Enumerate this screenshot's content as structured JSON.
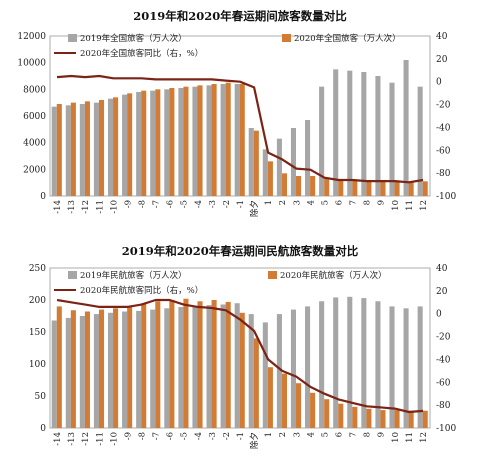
{
  "chart_data": [
    {
      "type": "bar",
      "title": "2019年和2020年春运期间旅客数量对比",
      "categories": [
        "-14",
        "-13",
        "-12",
        "-11",
        "-10",
        "-9",
        "-8",
        "-7",
        "-6",
        "-5",
        "-4",
        "-3",
        "-2",
        "-1",
        "除夕",
        "1",
        "2",
        "3",
        "4",
        "5",
        "6",
        "7",
        "8",
        "9",
        "10",
        "11",
        "12"
      ],
      "xtick_labels": [
        "-14",
        "-13",
        "-12",
        "-11",
        "-10",
        "-9",
        "-8",
        "-7",
        "-6",
        "-5",
        "-4",
        "-3",
        "-2",
        "-1",
        "除夕",
        "1",
        "2",
        "3",
        "4",
        "5",
        "6",
        "7",
        "8",
        "9",
        "10",
        "11",
        "12"
      ],
      "series": [
        {
          "name": "2019年全国旅客（万人次）",
          "axis": "left",
          "kind": "bar",
          "color": "#a6a6a6",
          "values": [
            6700,
            6800,
            6900,
            7000,
            7300,
            7600,
            7800,
            7900,
            8000,
            8100,
            8200,
            8300,
            8400,
            8400,
            5100,
            3500,
            4300,
            5100,
            5700,
            8200,
            9500,
            9400,
            9300,
            9000,
            8500,
            10200,
            8200
          ]
        },
        {
          "name": "2020年全国旅客（万人次）",
          "axis": "left",
          "kind": "bar",
          "color": "#d27b35",
          "values": [
            6900,
            7000,
            7100,
            7200,
            7400,
            7700,
            7900,
            8000,
            8100,
            8200,
            8300,
            8400,
            8500,
            8400,
            4900,
            2600,
            1700,
            1500,
            1500,
            1300,
            1200,
            1200,
            1100,
            1100,
            1100,
            1100,
            1100
          ]
        },
        {
          "name": "2020年全国旅客同比（右，%）",
          "axis": "right",
          "kind": "line",
          "color": "#7b2416",
          "values": [
            4,
            5,
            4,
            5,
            3,
            3,
            3,
            2,
            2,
            2,
            2,
            2,
            1,
            0,
            -5,
            -62,
            -68,
            -76,
            -77,
            -84,
            -86,
            -86,
            -87,
            -87,
            -87,
            -88,
            -86
          ]
        }
      ],
      "ylim_left": [
        0,
        12000
      ],
      "yticks_left": [
        0,
        2000,
        4000,
        6000,
        8000,
        10000,
        12000
      ],
      "ylim_right": [
        -100,
        40
      ],
      "yticks_right": [
        -100,
        -80,
        -60,
        -40,
        -20,
        0,
        20,
        40
      ],
      "legend_position": "top-right"
    },
    {
      "type": "bar",
      "title": "2019年和2020年春运期间民航旅客数量对比",
      "categories": [
        "-14",
        "-13",
        "-12",
        "-11",
        "-10",
        "-9",
        "-8",
        "-7",
        "-6",
        "-5",
        "-4",
        "-3",
        "-2",
        "-1",
        "除夕",
        "1",
        "2",
        "3",
        "4",
        "5",
        "6",
        "7",
        "8",
        "9",
        "10",
        "11",
        "12"
      ],
      "xtick_labels": [
        "-14",
        "-13",
        "-12",
        "-11",
        "-10",
        "-9",
        "-8",
        "-7",
        "-6",
        "-5",
        "-4",
        "-3",
        "-2",
        "-1",
        "除夕",
        "1",
        "2",
        "3",
        "4",
        "5",
        "6",
        "7",
        "8",
        "9",
        "10",
        "11",
        "12"
      ],
      "series": [
        {
          "name": "2019年民航旅客（万人次）",
          "axis": "left",
          "kind": "bar",
          "color": "#a6a6a6",
          "values": [
            168,
            172,
            175,
            178,
            180,
            182,
            183,
            185,
            187,
            189,
            190,
            192,
            193,
            195,
            178,
            165,
            178,
            185,
            190,
            198,
            204,
            205,
            203,
            198,
            190,
            187,
            190
          ]
        },
        {
          "name": "2020年民航旅客（万人次）",
          "axis": "left",
          "kind": "bar",
          "color": "#d27b35",
          "values": [
            190,
            184,
            182,
            185,
            187,
            190,
            195,
            198,
            200,
            202,
            198,
            200,
            197,
            180,
            140,
            95,
            85,
            70,
            55,
            45,
            38,
            33,
            30,
            28,
            28,
            27,
            27
          ]
        },
        {
          "name": "2020年民航旅客同比（右，%）",
          "axis": "right",
          "kind": "line",
          "color": "#7b2416",
          "values": [
            12,
            10,
            8,
            6,
            6,
            6,
            8,
            12,
            12,
            8,
            6,
            5,
            3,
            -5,
            -15,
            -40,
            -50,
            -55,
            -64,
            -70,
            -75,
            -78,
            -81,
            -82,
            -83,
            -86,
            -85
          ]
        }
      ],
      "ylim_left": [
        0,
        250
      ],
      "yticks_left": [
        0,
        50,
        100,
        150,
        200,
        250
      ],
      "ylim_right": [
        -100,
        40
      ],
      "yticks_right": [
        -100,
        -80,
        -60,
        -40,
        -20,
        0,
        20,
        40
      ],
      "legend_position": "top-right"
    }
  ]
}
